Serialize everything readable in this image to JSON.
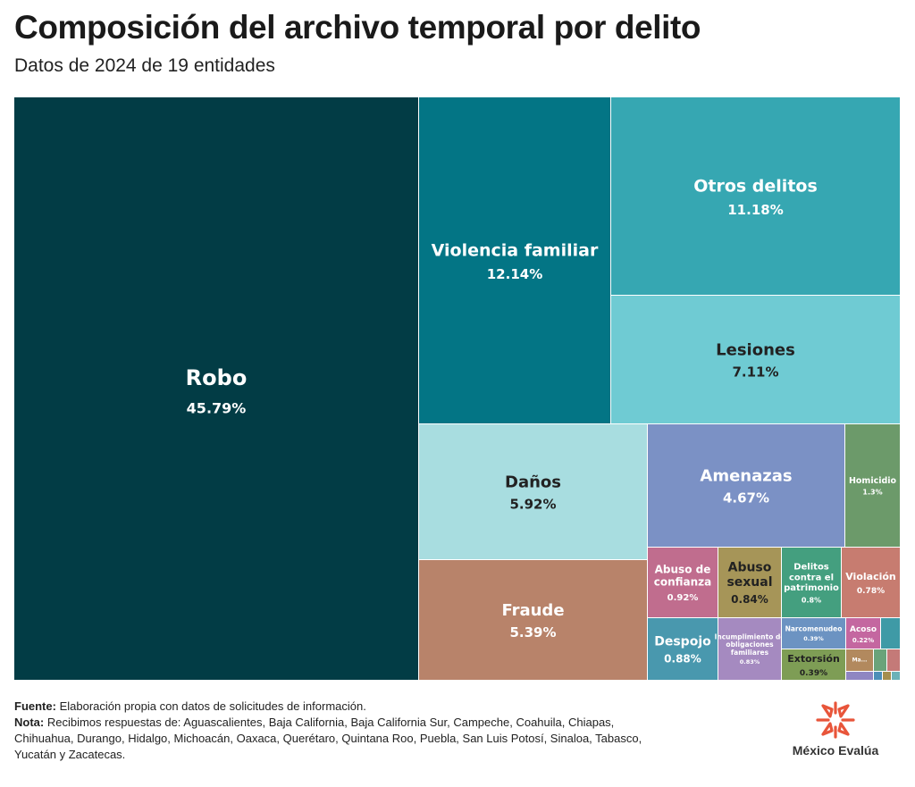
{
  "header": {
    "title": "Composición del archivo temporal por delito",
    "subtitle": "Datos de 2024 de 19 entidades"
  },
  "chart_data": {
    "type": "treemap",
    "title": "Composición del archivo temporal por delito",
    "subtitle": "Datos de 2024 de 19 entidades",
    "unit": "%",
    "items": [
      {
        "name": "Robo",
        "value": 45.79,
        "label": "45.79%",
        "color": "#023c45"
      },
      {
        "name": "Violencia familiar",
        "value": 12.14,
        "label": "12.14%",
        "color": "#037585"
      },
      {
        "name": "Otros delitos",
        "value": 11.18,
        "label": "11.18%",
        "color": "#36a7b2"
      },
      {
        "name": "Lesiones",
        "value": 7.11,
        "label": "7.11%",
        "color": "#6fcbd3"
      },
      {
        "name": "Daños",
        "value": 5.92,
        "label": "5.92%",
        "color": "#a8dde0"
      },
      {
        "name": "Fraude",
        "value": 5.39,
        "label": "5.39%",
        "color": "#b8836a"
      },
      {
        "name": "Amenazas",
        "value": 4.67,
        "label": "4.67%",
        "color": "#7b91c5"
      },
      {
        "name": "Homicidio",
        "value": 1.3,
        "label": "1.3%",
        "color": "#6c9a6a"
      },
      {
        "name": "Abuso de confianza",
        "value": 0.92,
        "label": "0.92%",
        "color": "#c06d8e"
      },
      {
        "name": "Abuso sexual",
        "value": 0.84,
        "label": "0.84%",
        "color": "#a69558"
      },
      {
        "name": "Delitos contra el patrimonio",
        "value": 0.8,
        "label": "0.8%",
        "color": "#449f7f"
      },
      {
        "name": "Violación",
        "value": 0.78,
        "label": "0.78%",
        "color": "#c77c70"
      },
      {
        "name": "Despojo",
        "value": 0.88,
        "label": "0.88%",
        "color": "#4998ae"
      },
      {
        "name": "Incumplimiento de obligaciones familiares",
        "value": 0.83,
        "label": "0.83%",
        "color": "#a58ac0"
      },
      {
        "name": "Narcomenudeo",
        "value": 0.39,
        "label": "0.39%",
        "color": "#6c93c2"
      },
      {
        "name": "Acoso",
        "value": 0.22,
        "label": "0.22%",
        "color": "#c467a0"
      },
      {
        "name": "Extorsión",
        "value": 0.39,
        "label": "0.39%",
        "color": "#7e9d55"
      },
      {
        "name": "Ma...",
        "value": 0.12,
        "label": "",
        "color": "#b2895e"
      }
    ]
  },
  "footer": {
    "source_label": "Fuente:",
    "source_text": "Elaboración propia con datos de solicitudes de información.",
    "note_label": "Nota:",
    "note_text": "Recibimos respuestas de: Aguascalientes, Baja California, Baja California Sur, Campeche, Coahuila, Chiapas, Chihuahua, Durango, Hidalgo, Michoacán, Oaxaca, Querétaro, Quintana Roo, Puebla, San Luis Potosí, Sinaloa, Tabasco, Yucatán y Zacatecas."
  },
  "brand": {
    "name": "México Evalúa",
    "logo_icon": "asterisk-star-icon",
    "logo_color": "#e8553a"
  }
}
